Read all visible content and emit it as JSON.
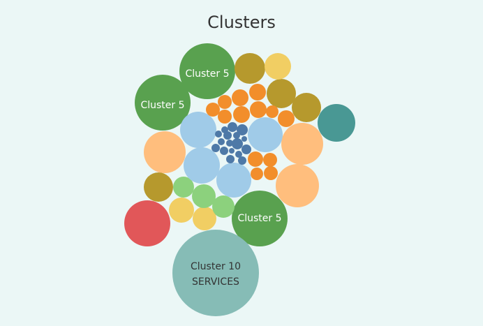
{
  "chart_data": {
    "type": "packed-bubble",
    "title": "Clusters",
    "colors": {
      "cluster_5_green": "#59a14f",
      "olive": "#b6992d",
      "yellow": "#f1ce63",
      "orange": "#f28e2b",
      "light_blue": "#a0cbe8",
      "dark_blue": "#4e79a7",
      "peach": "#ffbe7d",
      "teal": "#499894",
      "light_green": "#8cd17d",
      "red": "#e15759",
      "services_teal": "#86bcb6"
    },
    "labeled_bubbles": [
      {
        "lines": [
          "Cluster 5"
        ],
        "color": "cluster_5_green",
        "text_color": "#ffffff"
      },
      {
        "lines": [
          "Cluster 5"
        ],
        "color": "cluster_5_green",
        "text_color": "#ffffff"
      },
      {
        "lines": [
          "Cluster 5"
        ],
        "color": "cluster_5_green",
        "text_color": "#ffffff"
      },
      {
        "lines": [
          "Cluster 10",
          "SERVICES"
        ],
        "color": "services_teal",
        "text_color": "#333333"
      }
    ]
  }
}
